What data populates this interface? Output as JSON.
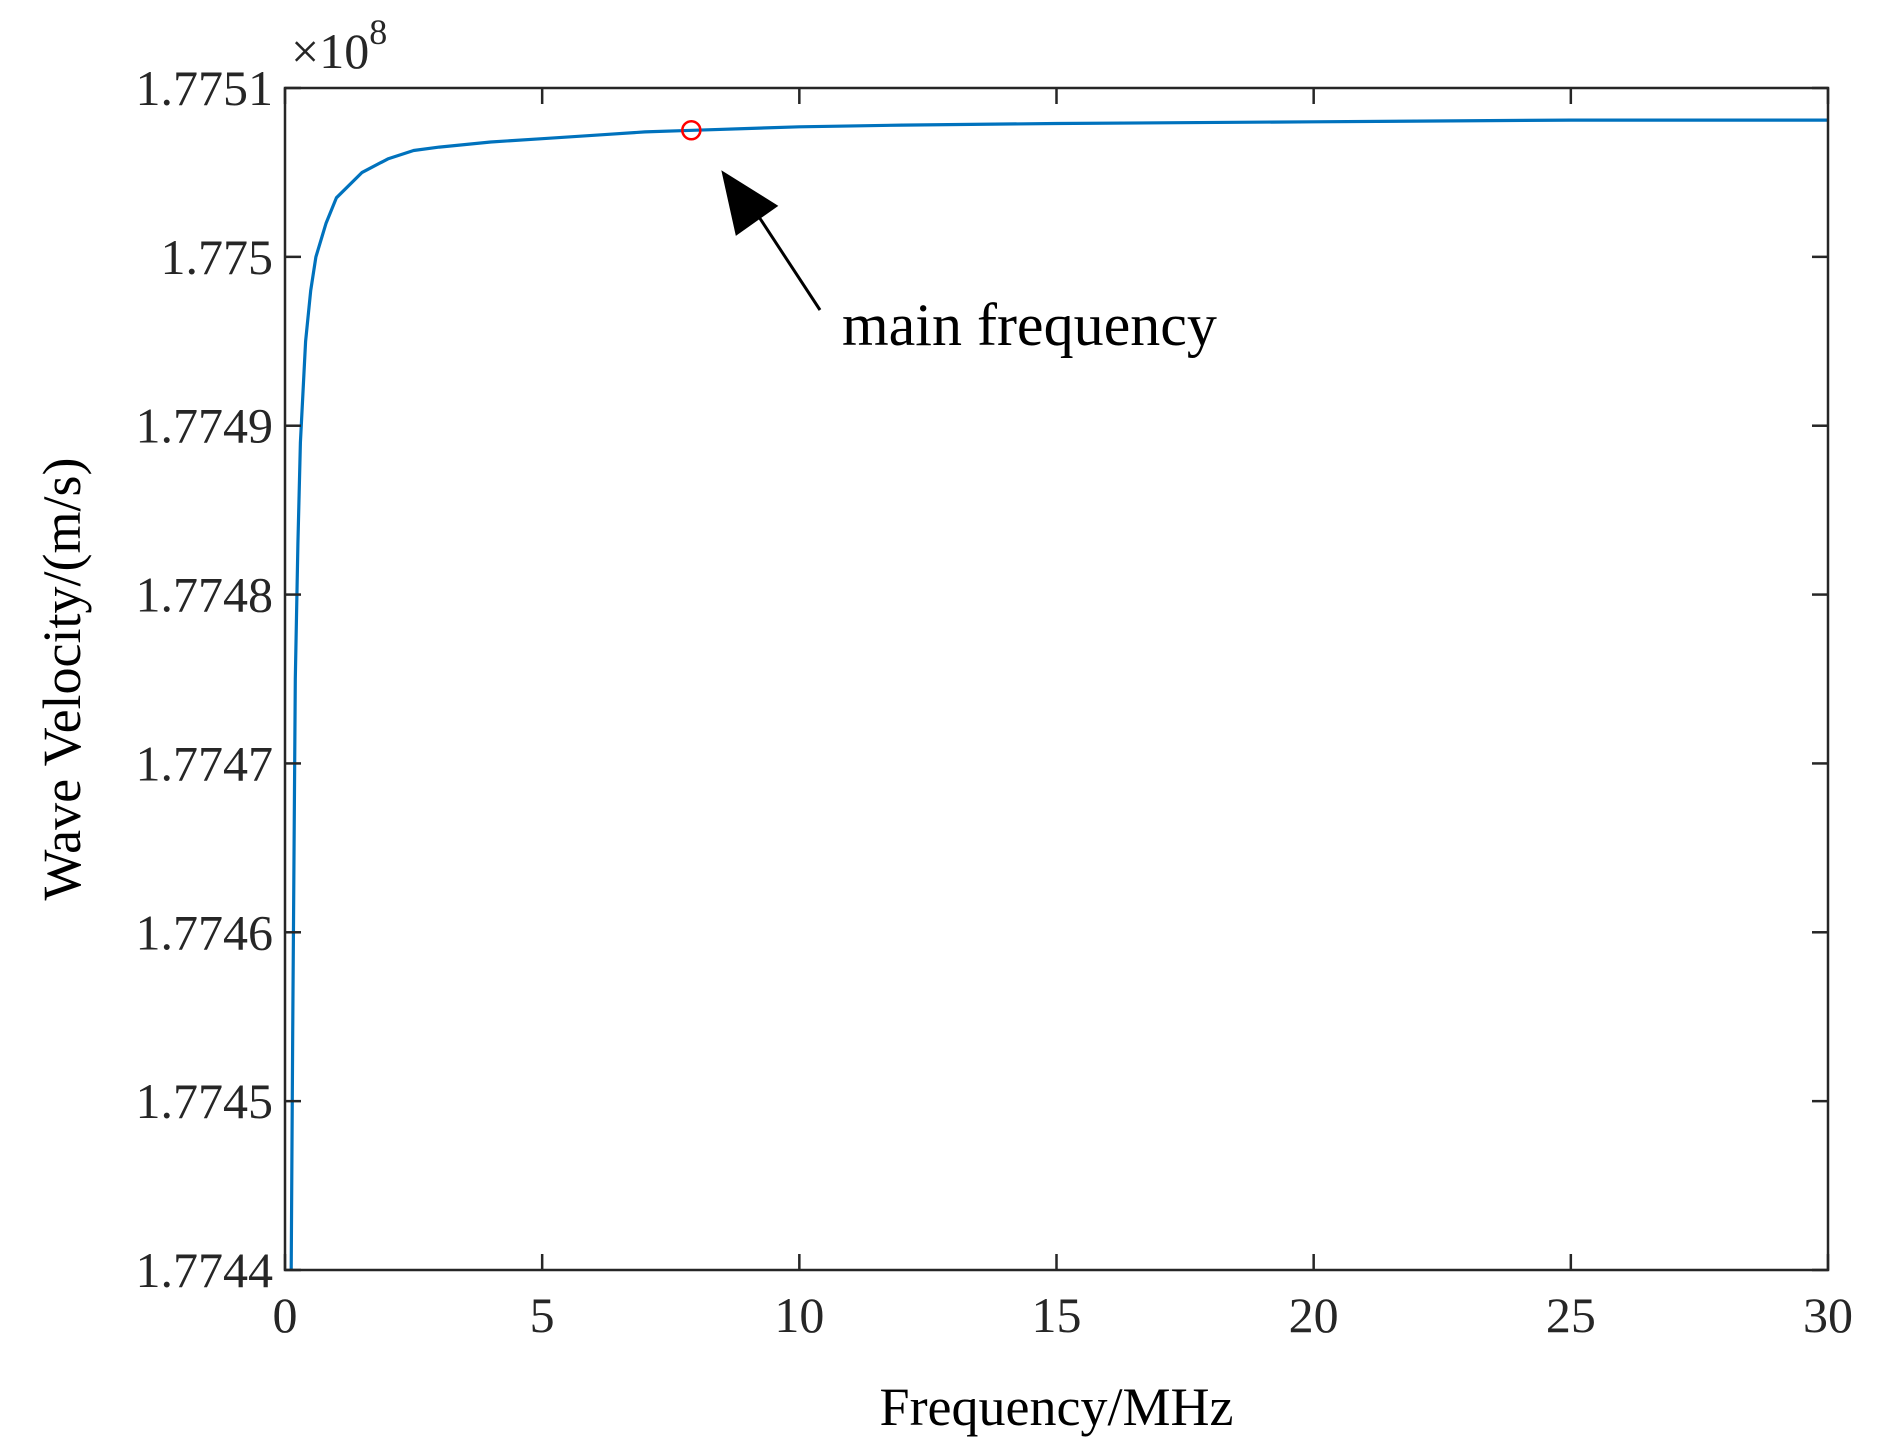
{
  "chart_data": {
    "type": "line",
    "title": "",
    "xlabel": "Frequency/MHz",
    "ylabel": "Wave Velocity/(m/s)",
    "y_multiplier_label": "×10",
    "y_multiplier_exponent": "8",
    "xlim": [
      0,
      30
    ],
    "ylim": [
      1.7744,
      1.7751
    ],
    "x_ticks": [
      0,
      5,
      10,
      15,
      20,
      25,
      30
    ],
    "x_tick_labels": [
      "0",
      "5",
      "10",
      "15",
      "20",
      "25",
      "30"
    ],
    "y_ticks": [
      1.7744,
      1.7745,
      1.7746,
      1.7747,
      1.7748,
      1.7749,
      1.775,
      1.7751
    ],
    "y_tick_labels": [
      "1.7744",
      "1.7745",
      "1.7746",
      "1.7747",
      "1.7748",
      "1.7749",
      "1.775",
      "1.7751"
    ],
    "grid": false,
    "series": [
      {
        "color": "#0072BD",
        "x": [
          0.12,
          0.15,
          0.2,
          0.25,
          0.3,
          0.4,
          0.5,
          0.6,
          0.8,
          1.0,
          1.5,
          2.0,
          2.5,
          3.0,
          4.0,
          5.0,
          6.0,
          7.0,
          8.0,
          9.0,
          10.0,
          12.0,
          15.0,
          20.0,
          25.0,
          30.0
        ],
        "y": [
          1.7744,
          1.77454,
          1.77475,
          1.77483,
          1.77489,
          1.77495,
          1.77498,
          1.775,
          1.77502,
          1.775035,
          1.77505,
          1.775058,
          1.775063,
          1.775065,
          1.775068,
          1.77507,
          1.775072,
          1.775074,
          1.775075,
          1.775076,
          1.775077,
          1.775078,
          1.775079,
          1.77508,
          1.775081,
          1.775081
        ]
      }
    ],
    "marker": {
      "x": 7.9,
      "y": 1.775075,
      "color": "#FF0000",
      "shape": "circle"
    },
    "annotation": {
      "text": "main frequency",
      "arrow_target": [
        7.9,
        1.775075
      ]
    }
  }
}
